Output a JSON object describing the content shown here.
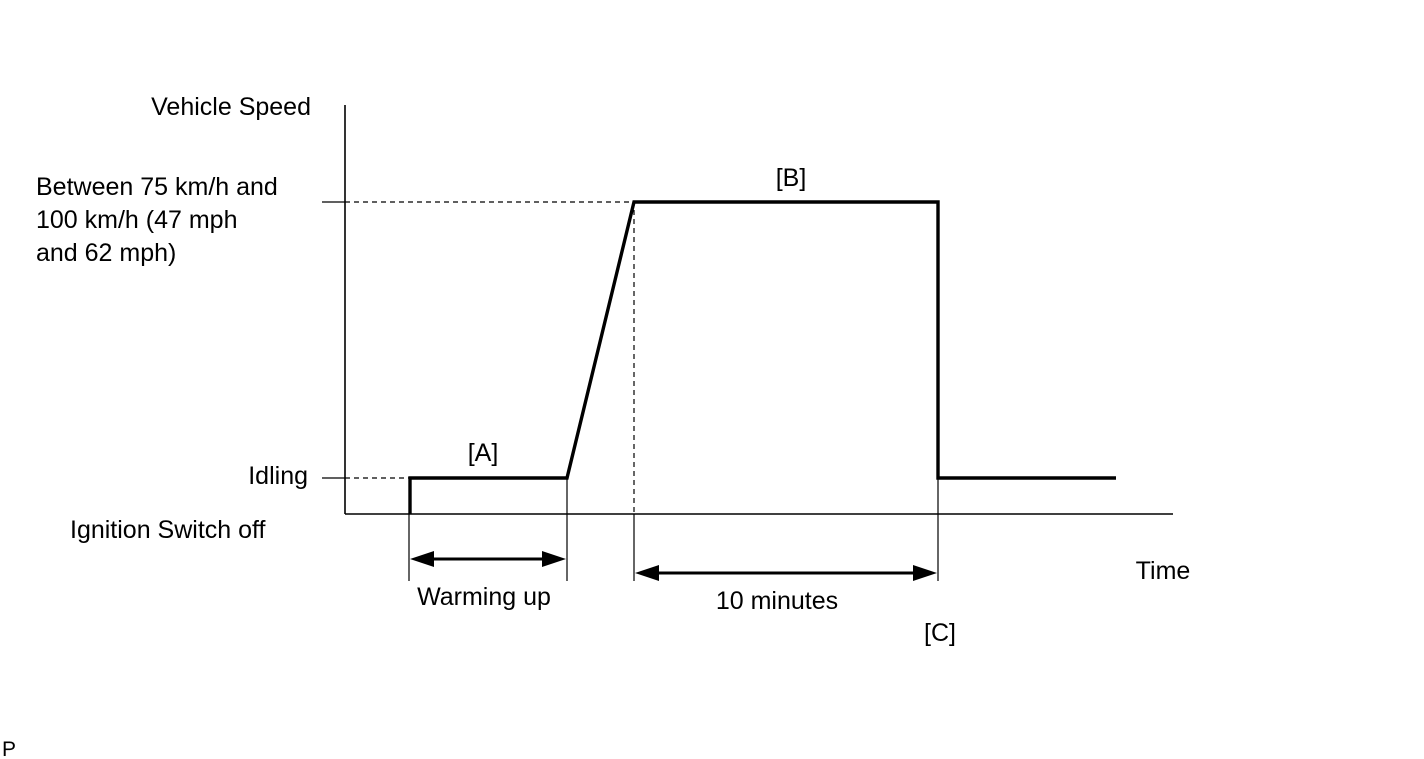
{
  "labels": {
    "y_axis": "Vehicle Speed",
    "x_axis": "Time",
    "high_speed_line1": "Between 75 km/h and",
    "high_speed_line2": "100 km/h (47 mph",
    "high_speed_line3": "and 62 mph)",
    "idling": "Idling",
    "ignition_off": "Ignition Switch off",
    "segment_a": "[A]",
    "segment_b": "[B]",
    "point_c": "[C]",
    "warming_up": "Warming up",
    "duration": "10 minutes",
    "corner_mark": "P"
  }
}
